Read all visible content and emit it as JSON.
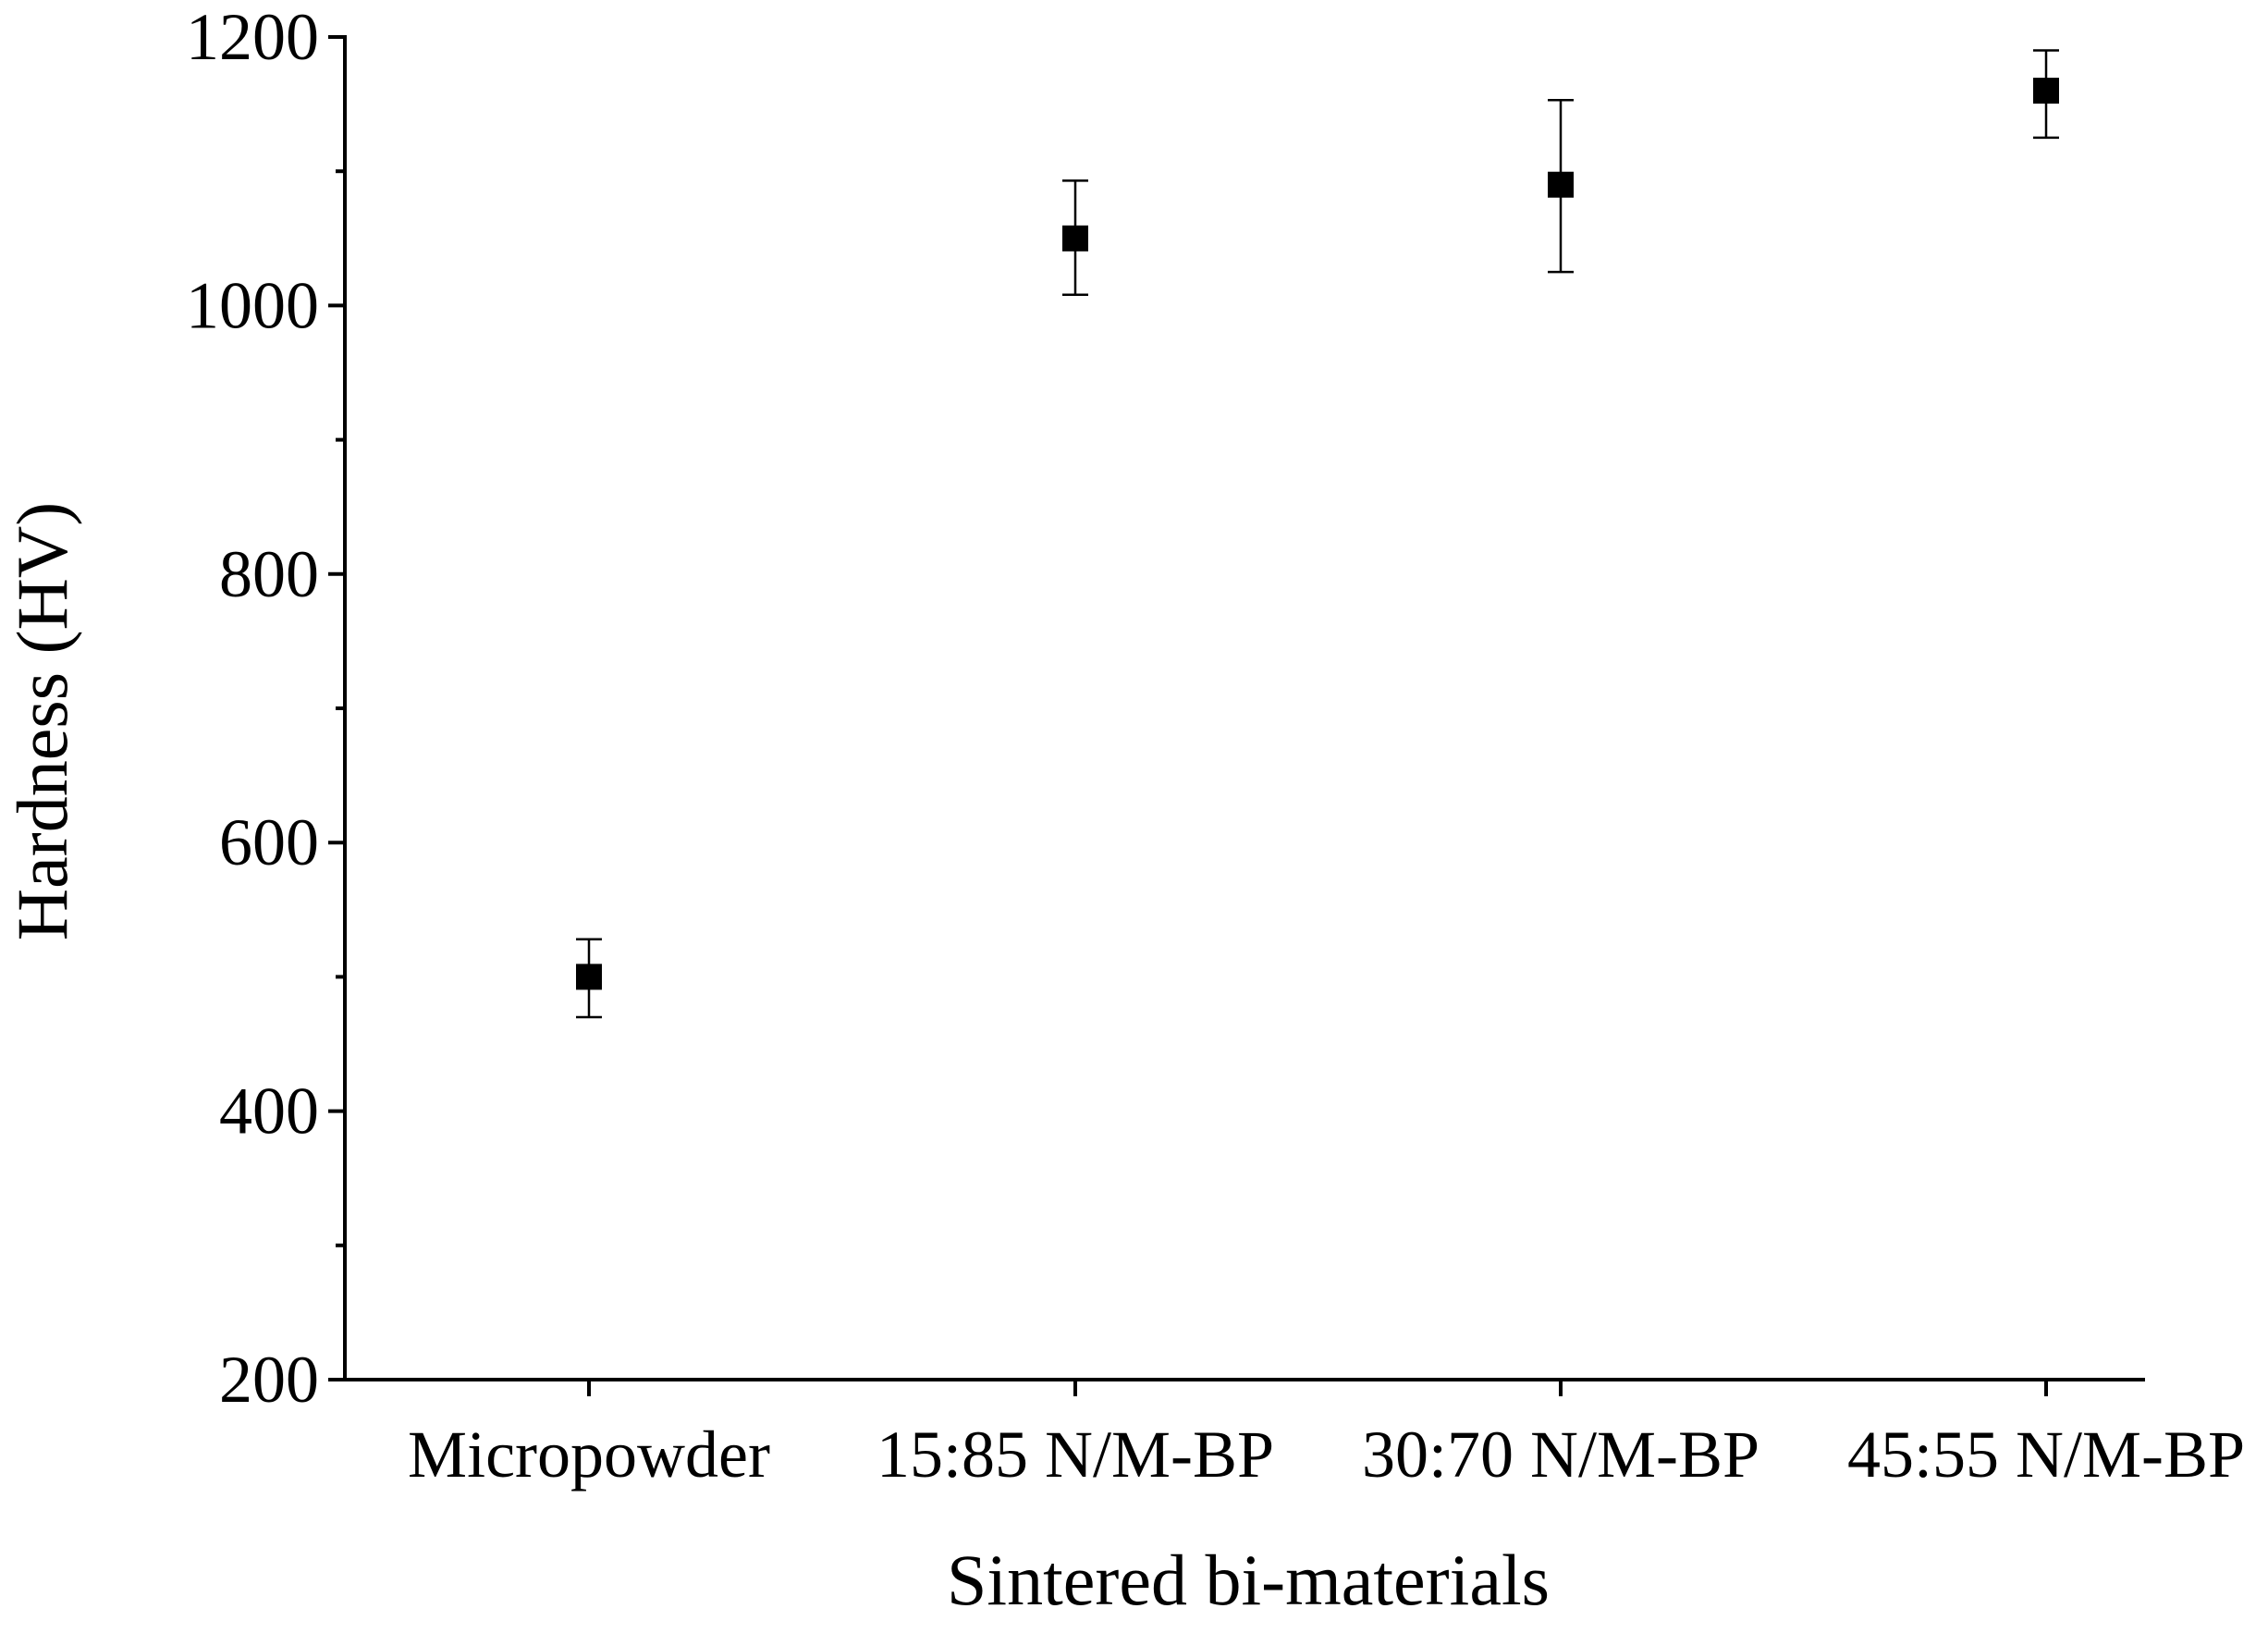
{
  "chart_data": {
    "type": "scatter",
    "title": "",
    "xlabel": "Sintered bi-materials",
    "ylabel": "Hardness (HV)",
    "categories": [
      "Micropowder",
      "15:85 N/M-BP",
      "30:70 N/M-BP",
      "45:55 N/M-BP"
    ],
    "series": [
      {
        "values": [
          500,
          1050,
          1090,
          1160
        ],
        "error_low": [
          470,
          1008,
          1025,
          1125
        ],
        "error_high": [
          528,
          1093,
          1153,
          1190
        ]
      }
    ],
    "ylim": [
      200,
      1200
    ],
    "y_major_ticks": [
      200,
      400,
      600,
      800,
      1000,
      1200
    ],
    "y_minor_ticks": [
      300,
      500,
      700,
      900,
      1100
    ],
    "marker": "square",
    "marker_color": "#000000",
    "grid": false,
    "legend": "none"
  }
}
